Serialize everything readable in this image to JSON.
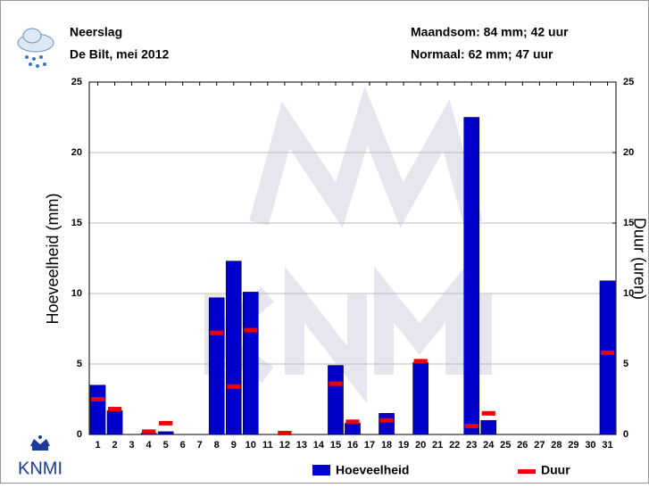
{
  "chart_data": {
    "type": "bar",
    "title": "Neerslag",
    "subtitle": "De Bilt, mei 2012",
    "annotations": [
      "Maandsom: 84 mm; 42 uur",
      "Normaal: 62 mm; 47 uur"
    ],
    "logo": "KNMI",
    "y_label": "Hoeveelheid (mm)",
    "y2_label": "Duur (uren)",
    "categories": [
      "1",
      "2",
      "3",
      "4",
      "5",
      "6",
      "7",
      "8",
      "9",
      "10",
      "11",
      "12",
      "13",
      "14",
      "15",
      "16",
      "17",
      "18",
      "19",
      "20",
      "21",
      "22",
      "23",
      "24",
      "25",
      "26",
      "27",
      "28",
      "29",
      "30",
      "31"
    ],
    "series": [
      {
        "name": "Hoeveelheid",
        "color": "#0000cc",
        "values": [
          3.5,
          1.7,
          0,
          0.1,
          0.2,
          0,
          0,
          9.7,
          12.3,
          10.1,
          0,
          0,
          0,
          0,
          4.9,
          0.8,
          0,
          1.5,
          0,
          5.1,
          0,
          0,
          22.5,
          1.0,
          0,
          0,
          0,
          0,
          0,
          0,
          10.9
        ]
      },
      {
        "name": "Duur",
        "color": "#ee0000",
        "axis": "y2",
        "values": [
          2.5,
          1.8,
          null,
          0.2,
          0.8,
          null,
          null,
          7.2,
          3.4,
          7.4,
          null,
          0.1,
          null,
          null,
          3.6,
          0.9,
          null,
          1.0,
          null,
          5.2,
          null,
          null,
          0.6,
          1.5,
          null,
          null,
          null,
          null,
          null,
          null,
          5.8
        ]
      }
    ],
    "ylim": [
      0,
      25
    ],
    "yticks": [
      0,
      5,
      10,
      15,
      20,
      25
    ],
    "y2lim": [
      0,
      25
    ],
    "y2ticks": [
      0,
      5,
      10,
      15,
      20,
      25
    ],
    "grid": true,
    "legend": "bottom"
  }
}
